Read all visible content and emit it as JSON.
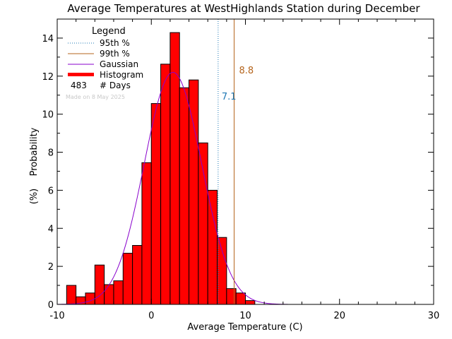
{
  "chart_data": {
    "type": "bar",
    "title": "Average Temperatures at WestHighlands Station during December",
    "xlabel": "Average Temperature (C)",
    "ylabel": "Probability",
    "ylabel_unit": "(%)",
    "xlim": [
      -10,
      30
    ],
    "ylim": [
      0,
      15
    ],
    "x_ticks": [
      -10,
      0,
      10,
      20,
      30
    ],
    "y_ticks": [
      0,
      2,
      4,
      6,
      8,
      10,
      12,
      14
    ],
    "bin_width": 1,
    "histogram": {
      "name": "Histogram",
      "color": "#ff0000",
      "bin_starts": [
        -9,
        -8,
        -7,
        -6,
        -5,
        -4,
        -3,
        -2,
        -1,
        0,
        1,
        2,
        3,
        4,
        5,
        6,
        7,
        8,
        9,
        10
      ],
      "values": [
        1.0,
        0.4,
        0.6,
        2.07,
        1.04,
        1.24,
        2.69,
        3.1,
        7.45,
        10.56,
        12.63,
        14.29,
        11.39,
        11.8,
        8.49,
        6.0,
        3.52,
        0.83,
        0.6,
        0.2
      ]
    },
    "gaussian": {
      "name": "Gaussian",
      "color": "#8800cc",
      "mean": 2.3,
      "sigma": 3.05,
      "peak": 12.2
    },
    "percentile_95": {
      "name": "95th %",
      "value": 7.1,
      "label": "7.1",
      "color": "#1f78b4"
    },
    "percentile_99": {
      "name": "99th %",
      "value": 8.8,
      "label": "8.8",
      "color": "#b5651d"
    },
    "legend": {
      "title": "Legend",
      "days_count": "483",
      "days_label": "# Days",
      "made_on": "Made on 8 May 2025"
    }
  }
}
